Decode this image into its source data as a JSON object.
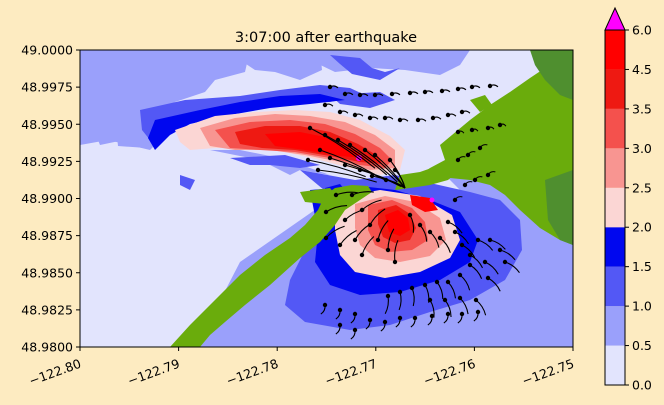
{
  "figure": {
    "title": "3:07:00 after earthquake",
    "background": "#fdebc1"
  },
  "map": {
    "x_ticks": [
      "−122.80",
      "−122.79",
      "−122.78",
      "−122.77",
      "−122.76",
      "−122.75"
    ],
    "y_ticks": [
      "48.9800",
      "48.9825",
      "48.9850",
      "48.9875",
      "48.9900",
      "48.9925",
      "48.9950",
      "48.9975",
      "49.0000"
    ],
    "x_range": [
      -122.8,
      -122.75
    ],
    "y_range": [
      48.98,
      49.0
    ],
    "land_color": "#6aac0c",
    "land_color_dark": "#4f8f2f"
  },
  "colorbar": {
    "labels": [
      "0.0",
      "0.5",
      "1.0",
      "1.5",
      "2.0",
      "2.5",
      "3.0",
      "3.5",
      "4.5",
      "6.0"
    ],
    "bands": [
      {
        "from": "0.0",
        "to": "0.5",
        "color": "#e2e4fd"
      },
      {
        "from": "0.5",
        "to": "1.0",
        "color": "#9aa0fb"
      },
      {
        "from": "1.0",
        "to": "1.5",
        "color": "#5358f5"
      },
      {
        "from": "1.5",
        "to": "2.0",
        "color": "#0007ef"
      },
      {
        "from": "2.0",
        "to": "2.5",
        "color": "#fbd6d4"
      },
      {
        "from": "2.5",
        "to": "3.0",
        "color": "#f89591"
      },
      {
        "from": "3.0",
        "to": "3.5",
        "color": "#f4514d"
      },
      {
        "from": "3.5",
        "to": "4.5",
        "color": "#ee1912"
      },
      {
        "from": "4.5",
        "to": "6.0",
        "color": "#ff0000"
      }
    ],
    "extend_color": "#ff00ff"
  }
}
